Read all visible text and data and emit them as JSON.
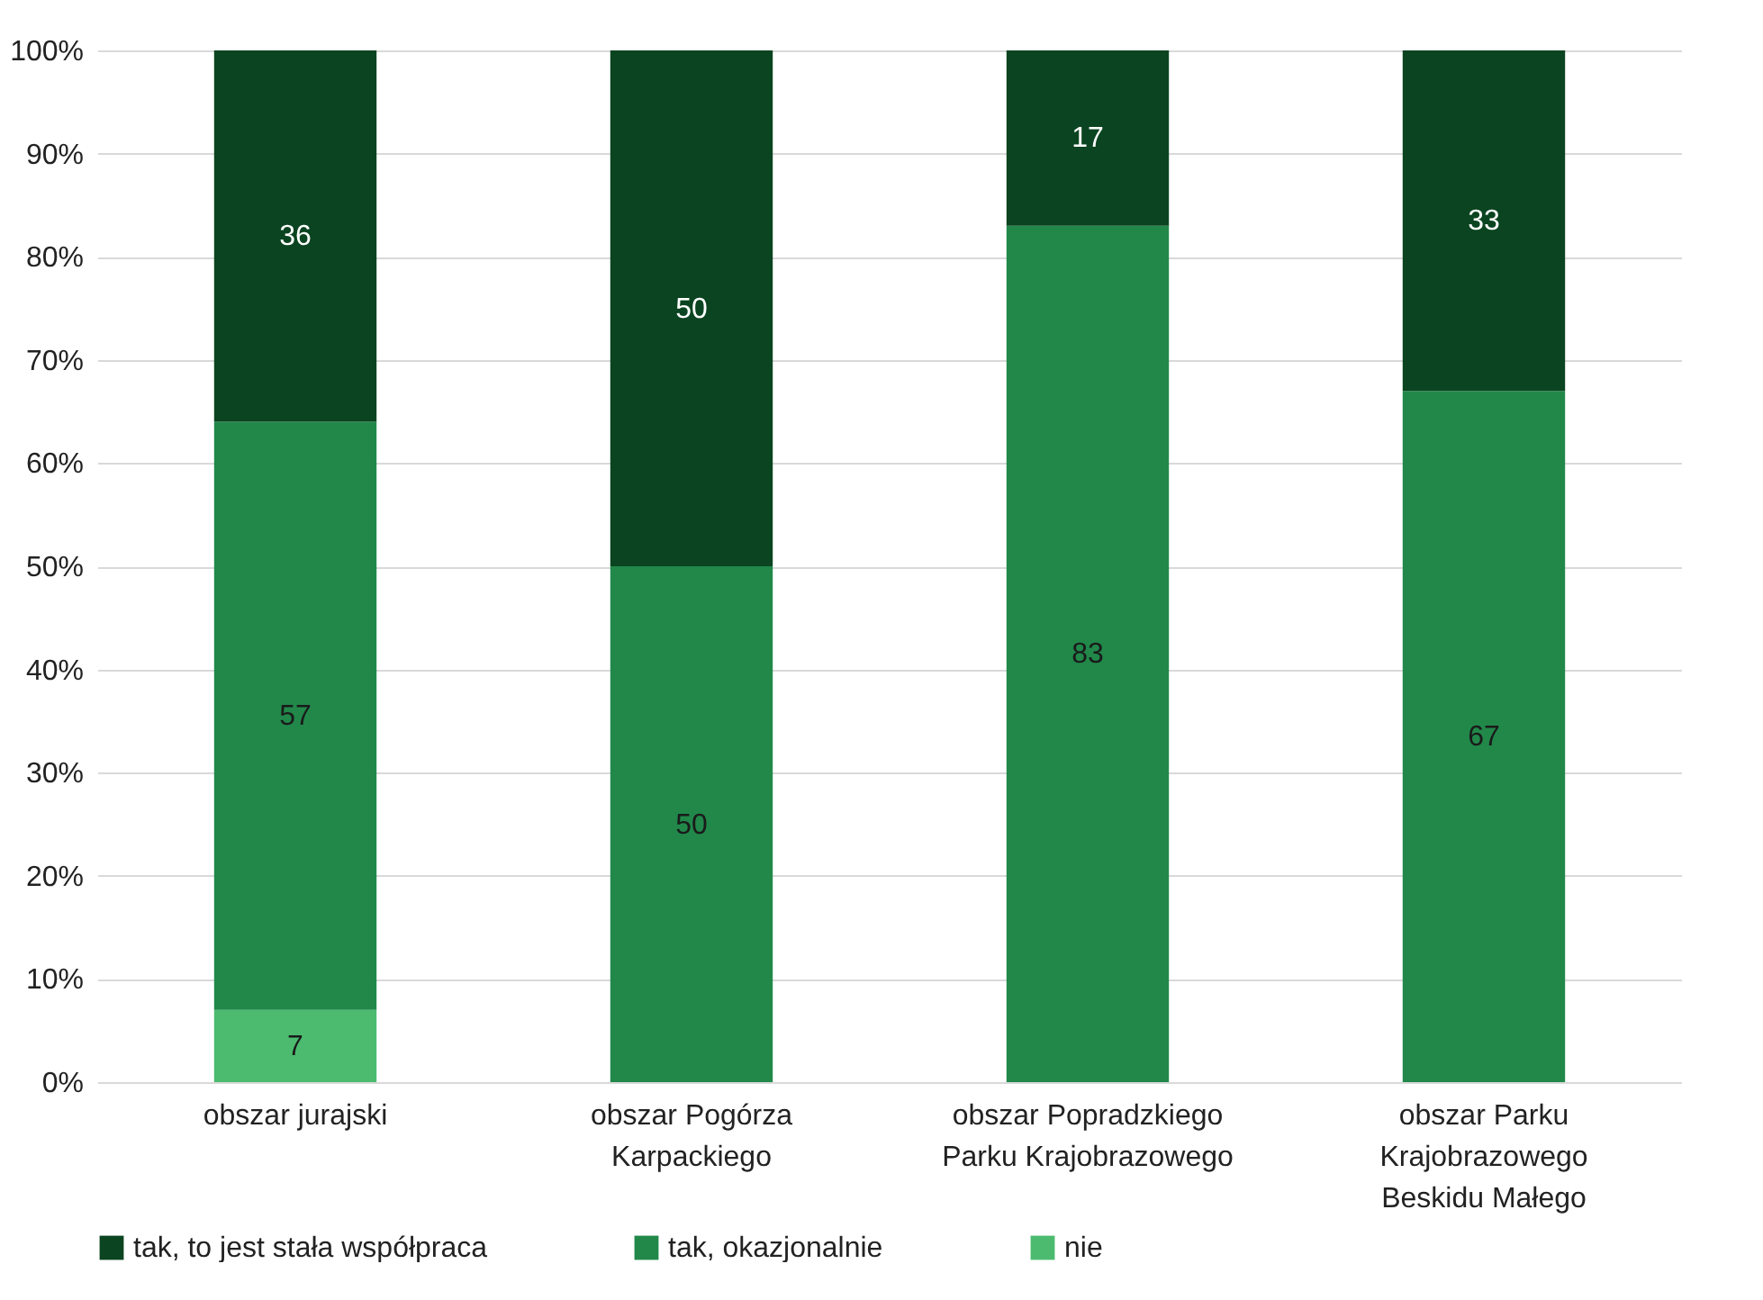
{
  "chart_data": {
    "type": "bar",
    "stacked": true,
    "categories": [
      "obszar jurajski",
      "obszar Pogórza Karpackiego",
      "obszar Popradzkiego Parku Krajobrazowego",
      "obszar Parku Krajobrazowego Beskidu Małego"
    ],
    "series": [
      {
        "name": "nie",
        "color": "#4cbb6f",
        "values": [
          7,
          0,
          0,
          0
        ],
        "value_labels": [
          "7",
          null,
          null,
          null
        ]
      },
      {
        "name": "tak, okazjonalnie",
        "color": "#21884a",
        "values": [
          57,
          50,
          83,
          67
        ],
        "value_labels": [
          "57",
          "50",
          "83",
          "67"
        ]
      },
      {
        "name": "tak, to jest stała współpraca",
        "color": "#0b4420",
        "values": [
          36,
          50,
          17,
          33
        ],
        "value_labels": [
          "36",
          "50",
          "17",
          "33"
        ]
      }
    ],
    "ylim": [
      0,
      100
    ],
    "yticks": [
      {
        "value": 0,
        "label": "0%"
      },
      {
        "value": 10,
        "label": "10%"
      },
      {
        "value": 20,
        "label": "20%"
      },
      {
        "value": 30,
        "label": "30%"
      },
      {
        "value": 40,
        "label": "40%"
      },
      {
        "value": 50,
        "label": "50%"
      },
      {
        "value": 60,
        "label": "60%"
      },
      {
        "value": 70,
        "label": "70%"
      },
      {
        "value": 80,
        "label": "80%"
      },
      {
        "value": 90,
        "label": "90%"
      },
      {
        "value": 100,
        "label": "100%"
      }
    ],
    "grid": "y",
    "legend": "bottom"
  }
}
